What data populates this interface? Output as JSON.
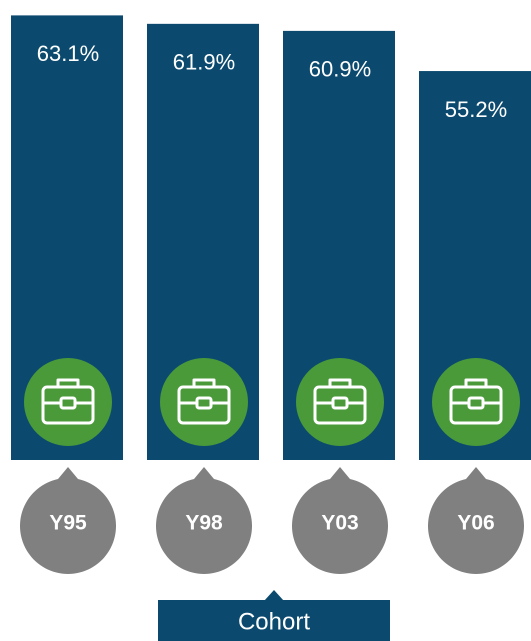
{
  "chart_data": {
    "type": "bar",
    "categories": [
      "Y95",
      "Y98",
      "Y03",
      "Y06"
    ],
    "values": [
      63.1,
      61.9,
      60.9,
      55.2
    ],
    "value_labels": [
      "63.1%",
      "61.9%",
      "60.9%",
      "55.2%"
    ],
    "color": "#0b4a6e",
    "ylim": [
      0,
      65
    ],
    "x_label": "Cohort"
  }
}
